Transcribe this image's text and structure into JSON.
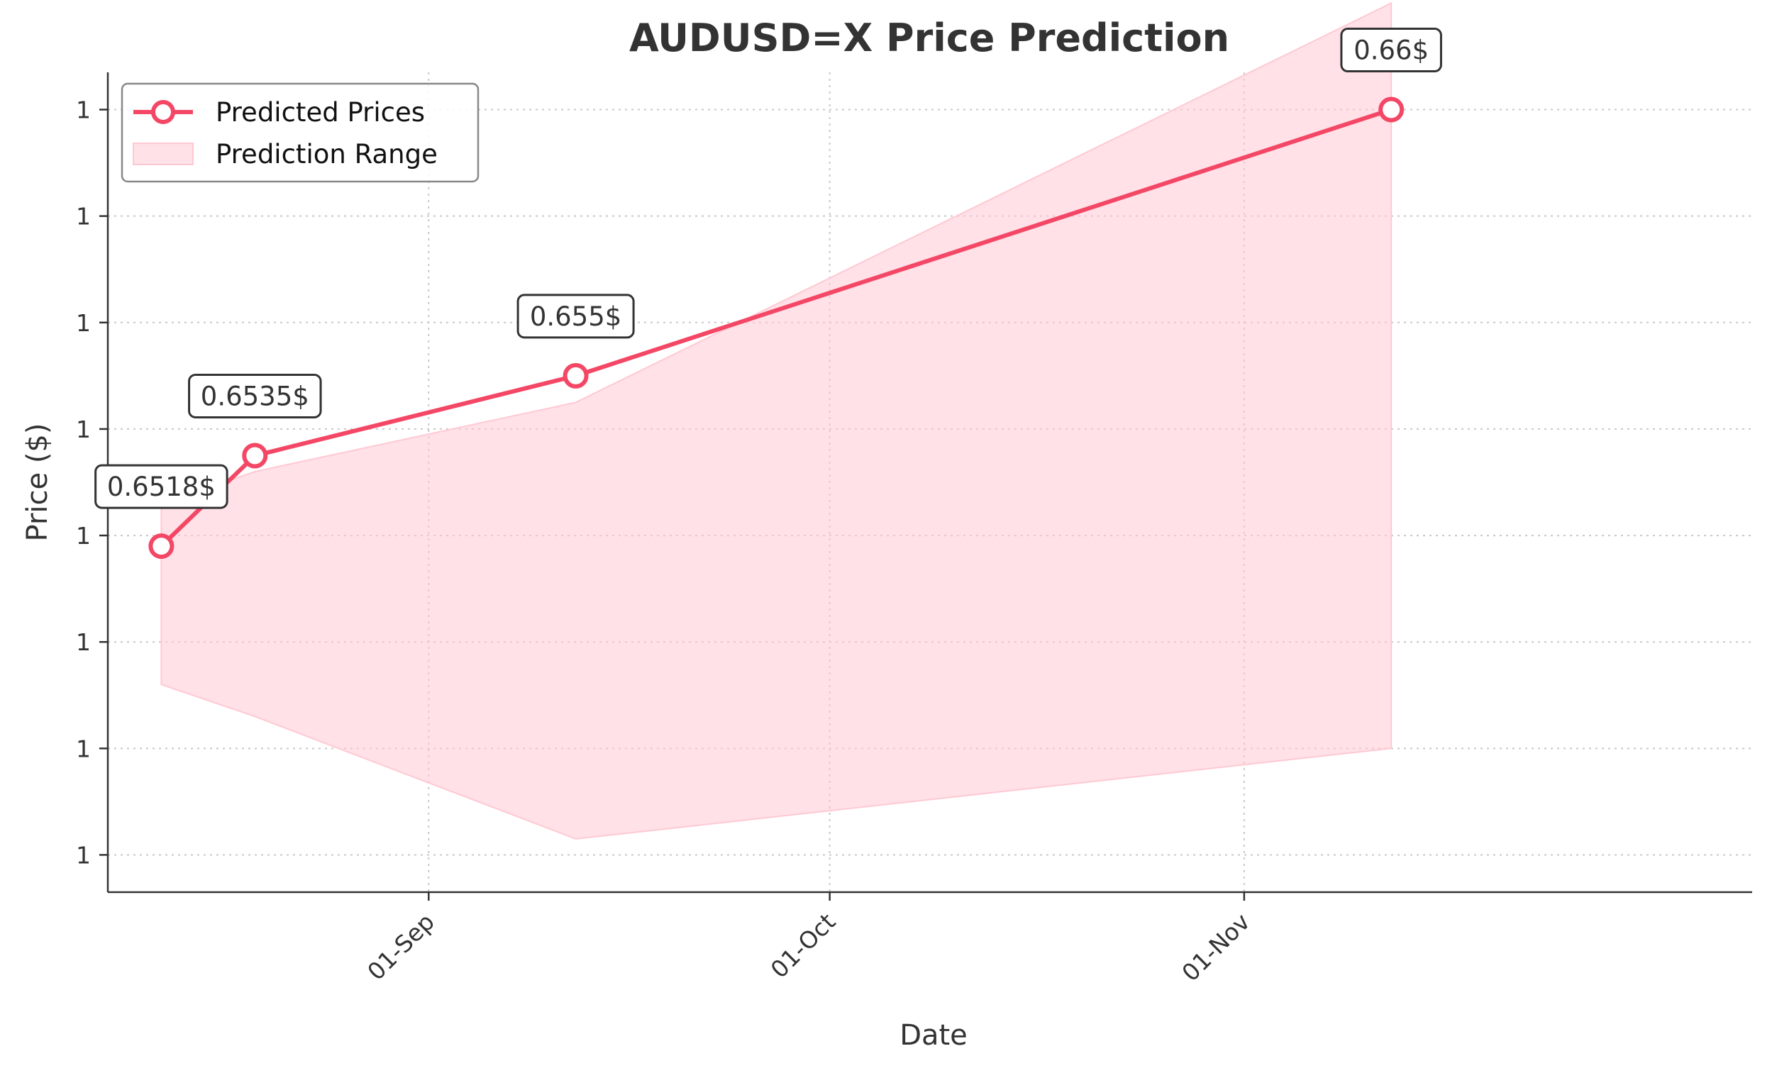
{
  "chart_data": {
    "type": "line",
    "title": "AUDUSD=X Price Prediction",
    "xlabel": "Date",
    "ylabel": "Price ($)",
    "x_ticks": [
      {
        "date": "2024-09-01",
        "label": "01-Sep"
      },
      {
        "date": "2024-10-01",
        "label": "01-Oct"
      },
      {
        "date": "2024-11-01",
        "label": "01-Nov"
      }
    ],
    "x_range": [
      "2024-08-08",
      "2024-12-09"
    ],
    "y_ticks": [
      {
        "value": 0.646,
        "label": "1"
      },
      {
        "value": 0.648,
        "label": "1"
      },
      {
        "value": 0.65,
        "label": "1"
      },
      {
        "value": 0.652,
        "label": "1"
      },
      {
        "value": 0.654,
        "label": "1"
      },
      {
        "value": 0.656,
        "label": "1"
      },
      {
        "value": 0.658,
        "label": "1"
      },
      {
        "value": 0.66,
        "label": "1"
      }
    ],
    "ylim": [
      0.6453,
      0.6607
    ],
    "grid": true,
    "legend_position": "top-left",
    "series": [
      {
        "name": "Predicted Prices",
        "color": "#f44766",
        "points": [
          {
            "date": "2024-08-12",
            "value": 0.6518,
            "label": "0.6518$"
          },
          {
            "date": "2024-08-19",
            "value": 0.6535,
            "label": "0.6535$"
          },
          {
            "date": "2024-09-12",
            "value": 0.655,
            "label": "0.655$"
          },
          {
            "date": "2024-11-12",
            "value": 0.66,
            "label": "0.66$"
          }
        ]
      }
    ],
    "range": {
      "name": "Prediction Range",
      "color": "#ffc9d3",
      "points": [
        {
          "date": "2024-08-12",
          "upper": 0.6526,
          "lower": 0.6492
        },
        {
          "date": "2024-08-19",
          "upper": 0.6532,
          "lower": 0.6486
        },
        {
          "date": "2024-09-12",
          "upper": 0.6545,
          "lower": 0.6463
        },
        {
          "date": "2024-11-12",
          "upper": 0.662,
          "lower": 0.648
        }
      ]
    }
  }
}
